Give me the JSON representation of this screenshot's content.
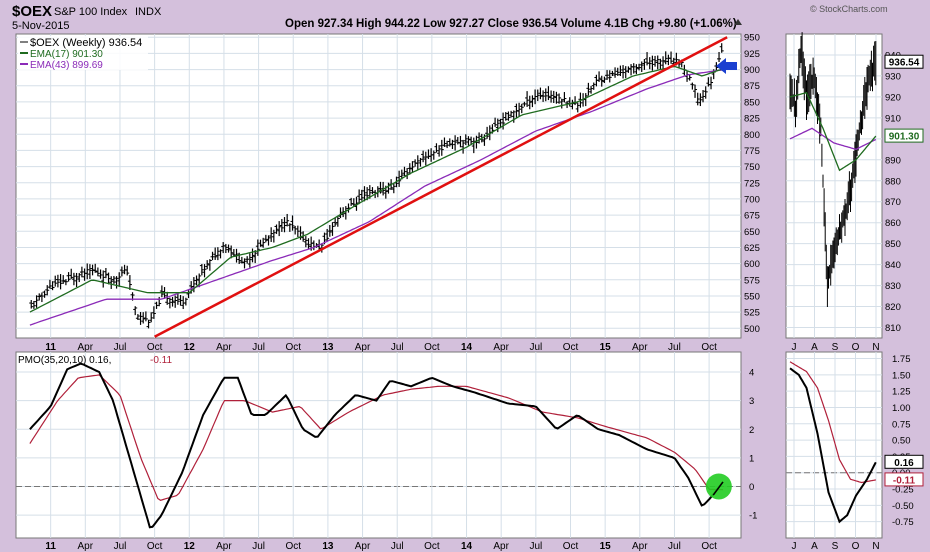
{
  "header": {
    "symbol": "$OEX",
    "name": "S&P 100 Index",
    "exchange": "INDX",
    "date": "5-Nov-2015",
    "quote_line": "Open 927.34  High 944.22  Low 927.27  Close 936.54  Volume 4.1B  Chg +9.80 (+1.06%)",
    "credit": "© StockCharts.com"
  },
  "legend": {
    "price": "$OEX (Weekly) 936.54",
    "ema17": "EMA(17) 901.30",
    "ema43": "EMA(43) 899.69",
    "pmo_prefix": "PMO(35,20,10) 0.16, ",
    "pmo_signal_val": "-0.11"
  },
  "badges": {
    "price_last": "936.54",
    "ema_last": "901.30",
    "pmo_last": "0.16",
    "pmo_signal": "-0.11"
  },
  "colors": {
    "background": "#d4c0dc",
    "panel": "#ffffff",
    "grid": "#d5dfe8",
    "price_bars": "#000000",
    "ema17": "#1f6b1f",
    "ema43": "#8b2bb8",
    "trendline": "#e01010",
    "pmo": "#000000",
    "pmo_signal": "#b0203a",
    "highlight_circle": "#22cc22",
    "arrow": "#1a3fd0"
  },
  "icons": [
    "left-arrow-icon",
    "up-triangle-icon"
  ],
  "chart_data": [
    {
      "type": "line",
      "name": "weekly-price",
      "x_ticks": [
        "11",
        "Apr",
        "Jul",
        "Oct",
        "12",
        "Apr",
        "Jul",
        "Oct",
        "13",
        "Apr",
        "Jul",
        "Oct",
        "14",
        "Apr",
        "Jul",
        "Oct",
        "15",
        "Apr",
        "Jul",
        "Oct"
      ],
      "y_ticks": [
        500,
        525,
        550,
        575,
        600,
        625,
        650,
        675,
        700,
        725,
        750,
        775,
        800,
        825,
        850,
        875,
        900,
        925,
        950
      ],
      "ylim": [
        485,
        955
      ],
      "close_anchors": [
        [
          2010.85,
          530
        ],
        [
          2011.0,
          565
        ],
        [
          2011.3,
          590
        ],
        [
          2011.45,
          575
        ],
        [
          2011.55,
          590
        ],
        [
          2011.62,
          520
        ],
        [
          2011.72,
          510
        ],
        [
          2011.8,
          550
        ],
        [
          2011.95,
          540
        ],
        [
          2012.1,
          590
        ],
        [
          2012.25,
          630
        ],
        [
          2012.4,
          600
        ],
        [
          2012.5,
          625
        ],
        [
          2012.7,
          665
        ],
        [
          2012.87,
          630
        ],
        [
          2012.95,
          625
        ],
        [
          2013.1,
          680
        ],
        [
          2013.3,
          710
        ],
        [
          2013.45,
          715
        ],
        [
          2013.6,
          750
        ],
        [
          2013.75,
          770
        ],
        [
          2013.9,
          790
        ],
        [
          2014.1,
          790
        ],
        [
          2014.2,
          810
        ],
        [
          2014.35,
          835
        ],
        [
          2014.5,
          860
        ],
        [
          2014.62,
          860
        ],
        [
          2014.8,
          845
        ],
        [
          2014.95,
          885
        ],
        [
          2015.1,
          895
        ],
        [
          2015.3,
          910
        ],
        [
          2015.45,
          915
        ],
        [
          2015.55,
          910
        ],
        [
          2015.62,
          880
        ],
        [
          2015.68,
          850
        ],
        [
          2015.76,
          880
        ],
        [
          2015.85,
          936.54
        ]
      ],
      "ema17_anchors": [
        [
          2010.85,
          525
        ],
        [
          2011.3,
          575
        ],
        [
          2011.7,
          555
        ],
        [
          2012.0,
          555
        ],
        [
          2012.3,
          610
        ],
        [
          2012.6,
          625
        ],
        [
          2012.85,
          645
        ],
        [
          2013.2,
          690
        ],
        [
          2013.6,
          740
        ],
        [
          2014.0,
          780
        ],
        [
          2014.4,
          830
        ],
        [
          2014.8,
          850
        ],
        [
          2015.2,
          890
        ],
        [
          2015.5,
          905
        ],
        [
          2015.7,
          890
        ],
        [
          2015.85,
          901.3
        ]
      ],
      "ema43_anchors": [
        [
          2010.85,
          505
        ],
        [
          2011.4,
          545
        ],
        [
          2011.8,
          545
        ],
        [
          2012.2,
          575
        ],
        [
          2012.6,
          605
        ],
        [
          2012.9,
          625
        ],
        [
          2013.3,
          665
        ],
        [
          2013.7,
          720
        ],
        [
          2014.1,
          760
        ],
        [
          2014.5,
          805
        ],
        [
          2014.9,
          835
        ],
        [
          2015.3,
          870
        ],
        [
          2015.6,
          892
        ],
        [
          2015.85,
          899.69
        ]
      ],
      "trendline": [
        [
          2011.75,
          487
        ],
        [
          2015.88,
          950
        ]
      ]
    },
    {
      "type": "line",
      "name": "daily-price-inset",
      "x_ticks": [
        "J",
        "A",
        "S",
        "O",
        "N"
      ],
      "y_ticks": [
        810,
        820,
        830,
        840,
        850,
        860,
        870,
        880,
        890,
        900,
        910,
        920,
        930,
        940
      ],
      "ylim": [
        805,
        950
      ],
      "close_anchors": [
        [
          0,
          925
        ],
        [
          5,
          915
        ],
        [
          10,
          945
        ],
        [
          15,
          920
        ],
        [
          22,
          930
        ],
        [
          28,
          905
        ],
        [
          34,
          830
        ],
        [
          40,
          850
        ],
        [
          48,
          860
        ],
        [
          55,
          875
        ],
        [
          62,
          900
        ],
        [
          70,
          925
        ],
        [
          78,
          936.54
        ]
      ],
      "ema17_anchors": [
        [
          0,
          920
        ],
        [
          15,
          922
        ],
        [
          30,
          905
        ],
        [
          45,
          885
        ],
        [
          60,
          890
        ],
        [
          78,
          901.3
        ]
      ],
      "ema43_anchors": [
        [
          0,
          900
        ],
        [
          20,
          905
        ],
        [
          40,
          898
        ],
        [
          60,
          895
        ],
        [
          78,
          899.69
        ]
      ]
    },
    {
      "type": "line",
      "name": "PMO-weekly",
      "y_ticks": [
        -1,
        0,
        1,
        2,
        3,
        4
      ],
      "ylim": [
        -1.8,
        4.7
      ],
      "pmo_anchors": [
        [
          2010.85,
          2.0
        ],
        [
          2011.0,
          2.8
        ],
        [
          2011.12,
          4.1
        ],
        [
          2011.22,
          4.3
        ],
        [
          2011.35,
          4.0
        ],
        [
          2011.45,
          3.0
        ],
        [
          2011.6,
          0.5
        ],
        [
          2011.72,
          -1.5
        ],
        [
          2011.8,
          -1.0
        ],
        [
          2011.95,
          0.5
        ],
        [
          2012.1,
          2.5
        ],
        [
          2012.25,
          3.8
        ],
        [
          2012.35,
          3.8
        ],
        [
          2012.45,
          2.5
        ],
        [
          2012.55,
          2.5
        ],
        [
          2012.7,
          3.2
        ],
        [
          2012.82,
          2.0
        ],
        [
          2012.92,
          1.7
        ],
        [
          2013.05,
          2.5
        ],
        [
          2013.2,
          3.2
        ],
        [
          2013.35,
          3.0
        ],
        [
          2013.45,
          3.7
        ],
        [
          2013.6,
          3.5
        ],
        [
          2013.75,
          3.8
        ],
        [
          2013.9,
          3.5
        ],
        [
          2014.05,
          3.3
        ],
        [
          2014.3,
          2.9
        ],
        [
          2014.5,
          2.8
        ],
        [
          2014.65,
          2.0
        ],
        [
          2014.8,
          2.5
        ],
        [
          2014.95,
          2.0
        ],
        [
          2015.1,
          1.8
        ],
        [
          2015.3,
          1.3
        ],
        [
          2015.5,
          1.0
        ],
        [
          2015.6,
          0.3
        ],
        [
          2015.7,
          -0.7
        ],
        [
          2015.76,
          -0.4
        ],
        [
          2015.85,
          0.16
        ]
      ],
      "signal_anchors": [
        [
          2010.85,
          1.5
        ],
        [
          2011.05,
          3.0
        ],
        [
          2011.2,
          3.8
        ],
        [
          2011.35,
          3.9
        ],
        [
          2011.5,
          3.2
        ],
        [
          2011.65,
          1.0
        ],
        [
          2011.78,
          -0.5
        ],
        [
          2011.92,
          -0.3
        ],
        [
          2012.1,
          1.3
        ],
        [
          2012.25,
          3.0
        ],
        [
          2012.4,
          3.0
        ],
        [
          2012.6,
          2.6
        ],
        [
          2012.8,
          2.8
        ],
        [
          2012.95,
          2.0
        ],
        [
          2013.15,
          2.6
        ],
        [
          2013.4,
          3.2
        ],
        [
          2013.6,
          3.4
        ],
        [
          2013.8,
          3.5
        ],
        [
          2014.0,
          3.5
        ],
        [
          2014.3,
          3.1
        ],
        [
          2014.55,
          2.6
        ],
        [
          2014.8,
          2.4
        ],
        [
          2015.0,
          2.1
        ],
        [
          2015.3,
          1.7
        ],
        [
          2015.5,
          1.2
        ],
        [
          2015.65,
          0.6
        ],
        [
          2015.75,
          -0.1
        ],
        [
          2015.85,
          -0.11
        ]
      ]
    },
    {
      "type": "line",
      "name": "PMO-daily-inset",
      "x_ticks": [
        "J",
        "A",
        "S",
        "O",
        "N"
      ],
      "y_ticks": [
        -0.75,
        -0.5,
        -0.25,
        0.0,
        0.25,
        0.5,
        0.75,
        1.0,
        1.25,
        1.5,
        1.75
      ],
      "ylim": [
        -1.0,
        1.85
      ],
      "pmo_anchors": [
        [
          0,
          1.6
        ],
        [
          8,
          1.5
        ],
        [
          15,
          1.3
        ],
        [
          25,
          0.6
        ],
        [
          35,
          -0.3
        ],
        [
          45,
          -0.75
        ],
        [
          52,
          -0.65
        ],
        [
          60,
          -0.35
        ],
        [
          70,
          -0.1
        ],
        [
          78,
          0.16
        ]
      ],
      "signal_anchors": [
        [
          0,
          1.7
        ],
        [
          15,
          1.55
        ],
        [
          25,
          1.3
        ],
        [
          35,
          0.8
        ],
        [
          45,
          0.2
        ],
        [
          55,
          -0.1
        ],
        [
          65,
          -0.15
        ],
        [
          78,
          -0.11
        ]
      ]
    }
  ]
}
